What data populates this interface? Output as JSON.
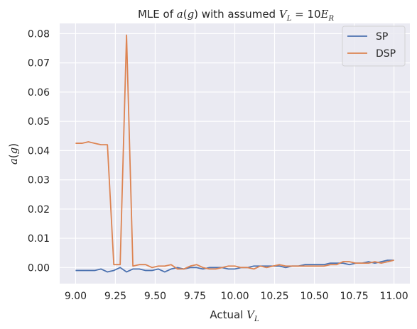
{
  "chart_data": {
    "type": "line",
    "title": {
      "prefix": "MLE of ",
      "func_name": "a",
      "func_arg": "g",
      "middle": " with assumed ",
      "lhs_var": "V",
      "lhs_sub": "L",
      "equals": " = 10",
      "rhs_var": "E",
      "rhs_sub": "R"
    },
    "xlabel": {
      "text": "Actual ",
      "var": "V",
      "sub": "L"
    },
    "ylabel": {
      "func_name": "a",
      "func_arg": "g"
    },
    "xlim": [
      8.9,
      11.1
    ],
    "ylim": [
      -0.0055,
      0.0835
    ],
    "xticks": [
      9.0,
      9.25,
      9.5,
      9.75,
      10.0,
      10.25,
      10.5,
      10.75,
      11.0
    ],
    "xtick_labels": [
      "9.00",
      "9.25",
      "9.50",
      "9.75",
      "10.00",
      "10.25",
      "10.50",
      "10.75",
      "11.00"
    ],
    "yticks": [
      0.0,
      0.01,
      0.02,
      0.03,
      0.04,
      0.05,
      0.06,
      0.07,
      0.08
    ],
    "ytick_labels": [
      "0.00",
      "0.01",
      "0.02",
      "0.03",
      "0.04",
      "0.05",
      "0.06",
      "0.07",
      "0.08"
    ],
    "grid": true,
    "legend_position": "top-right",
    "x": [
      9.0,
      9.04,
      9.08,
      9.12,
      9.16,
      9.2,
      9.24,
      9.28,
      9.32,
      9.36,
      9.4,
      9.44,
      9.48,
      9.52,
      9.56,
      9.6,
      9.64,
      9.68,
      9.72,
      9.76,
      9.8,
      9.84,
      9.88,
      9.92,
      9.96,
      10.0,
      10.04,
      10.08,
      10.12,
      10.16,
      10.2,
      10.24,
      10.28,
      10.32,
      10.36,
      10.4,
      10.44,
      10.48,
      10.52,
      10.56,
      10.6,
      10.64,
      10.68,
      10.72,
      10.76,
      10.8,
      10.84,
      10.88,
      10.92,
      10.96,
      11.0
    ],
    "series": [
      {
        "name": "SP",
        "color": "#4c72b0",
        "values": [
          -0.001,
          -0.001,
          -0.001,
          -0.001,
          -0.0005,
          -0.0015,
          -0.001,
          0.0,
          -0.0015,
          -0.0005,
          -0.0005,
          -0.001,
          -0.001,
          -0.0005,
          -0.0015,
          -0.0005,
          0.0,
          -0.0005,
          0.0,
          0.0,
          -0.0005,
          0.0,
          0.0,
          0.0,
          -0.0005,
          -0.0005,
          0.0,
          0.0,
          0.0005,
          0.0005,
          0.0005,
          0.0005,
          0.0005,
          0.0,
          0.0005,
          0.0005,
          0.001,
          0.001,
          0.001,
          0.001,
          0.0015,
          0.0015,
          0.0015,
          0.001,
          0.0015,
          0.0015,
          0.002,
          0.0015,
          0.002,
          0.0025,
          0.0025
        ]
      },
      {
        "name": "DSP",
        "color": "#dd8452",
        "values": [
          0.0425,
          0.0425,
          0.043,
          0.0425,
          0.042,
          0.042,
          0.001,
          0.001,
          0.0795,
          0.0005,
          0.001,
          0.001,
          0.0,
          0.0005,
          0.0005,
          0.001,
          -0.0005,
          -0.0005,
          0.0005,
          0.001,
          0.0,
          -0.0005,
          -0.0005,
          0.0,
          0.0005,
          0.0005,
          0.0,
          0.0,
          -0.0005,
          0.0005,
          0.0,
          0.0005,
          0.001,
          0.0005,
          0.0005,
          0.0005,
          0.0005,
          0.0005,
          0.0005,
          0.0005,
          0.001,
          0.001,
          0.002,
          0.002,
          0.0015,
          0.0015,
          0.0015,
          0.002,
          0.0015,
          0.002,
          0.0025
        ]
      }
    ],
    "style": {
      "background": "#ffffff",
      "plot_background": "#eaeaf2",
      "grid_color": "#ffffff",
      "text_color": "#262626"
    }
  }
}
